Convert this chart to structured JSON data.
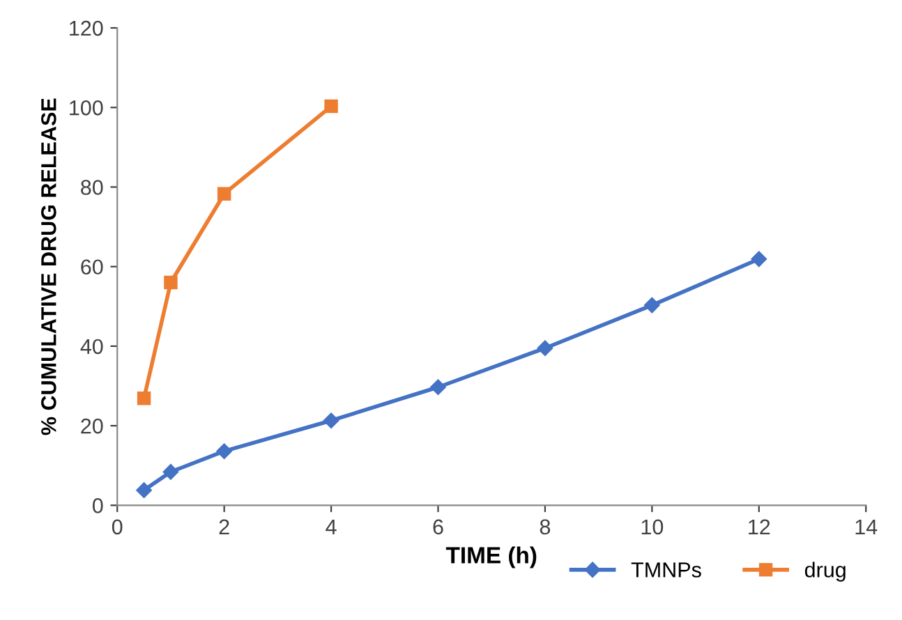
{
  "chart_data": {
    "type": "line",
    "xlabel": "TIME (h)",
    "ylabel": "% CUMULATIVE DRUG RELEASE",
    "xlim": [
      0,
      14
    ],
    "xticks": [
      0,
      2,
      4,
      6,
      8,
      10,
      12,
      14
    ],
    "ylim": [
      0,
      120
    ],
    "yticks": [
      0,
      20,
      40,
      60,
      80,
      100,
      120
    ],
    "grid": false,
    "legend": "bottom right",
    "line_style": "solid",
    "series": [
      {
        "name": "TMNPs",
        "color": "#4472c4",
        "marker": "diamond",
        "x": [
          0.5,
          1,
          2,
          4,
          6,
          8,
          10,
          12
        ],
        "values": [
          3.8,
          8.4,
          13.6,
          21.3,
          29.7,
          39.5,
          50.3,
          61.9
        ]
      },
      {
        "name": "drug",
        "color": "#ed7d31",
        "marker": "square",
        "x": [
          0.5,
          1,
          2,
          4
        ],
        "values": [
          26.9,
          56,
          78.3,
          100.3
        ]
      }
    ]
  }
}
